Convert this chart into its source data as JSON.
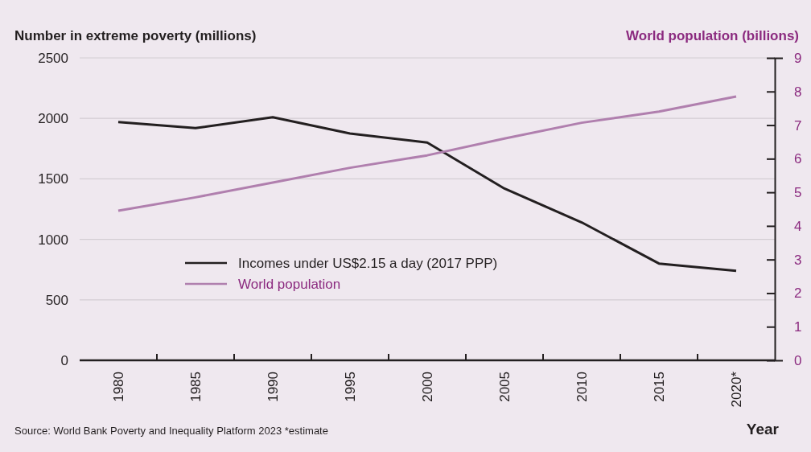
{
  "chart_data": {
    "type": "line",
    "ylabel": "Number in extreme poverty (millions)",
    "y2label": "World population (billions)",
    "xlabel": "Year",
    "categories": [
      "1980",
      "1985",
      "1990",
      "1995",
      "2000",
      "2005",
      "2010",
      "2015",
      "2020*"
    ],
    "series": [
      {
        "name": "Incomes under US$2.15 a day (2017 PPP)",
        "color": "#231f20",
        "values": [
          1970,
          1920,
          2010,
          1875,
          1800,
          1420,
          1140,
          800,
          740
        ]
      },
      {
        "name": "World population",
        "color": "#b07fae",
        "axis": "y2",
        "values": [
          4.45,
          4.85,
          5.29,
          5.73,
          6.1,
          6.6,
          7.07,
          7.4,
          7.85
        ]
      }
    ],
    "ylim": [
      0,
      2500
    ],
    "yticks": [
      0,
      500,
      1000,
      1500,
      2000,
      2500
    ],
    "y2lim": [
      0,
      9
    ],
    "y2ticks": [
      0,
      1,
      2,
      3,
      4,
      5,
      6,
      7,
      8,
      9
    ],
    "grid": "y",
    "legend": "left",
    "marker": "none",
    "line_style": "solid",
    "annotations": [
      "Source: World Bank Poverty and Inequality Platform 2023  *estimate"
    ]
  }
}
